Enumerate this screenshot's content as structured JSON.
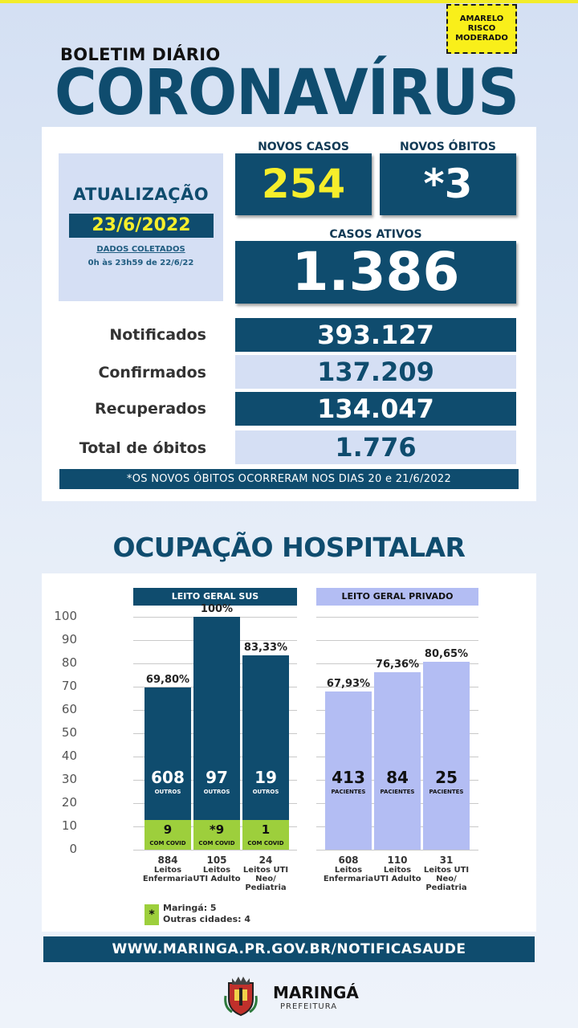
{
  "risk": {
    "line1": "AMARELO",
    "line2": "RISCO",
    "line3": "MODERADO",
    "color": "#f9ef1a"
  },
  "header": {
    "kicker": "BOLETIM DIÁRIO",
    "title": "CORONAVÍRUS"
  },
  "update": {
    "title": "ATUALIZAÇÃO",
    "date": "23/6/2022",
    "sub1": "DADOS COLETADOS",
    "sub2": "0h às 23h59 de 22/6/22"
  },
  "new_cases": {
    "label": "NOVOS CASOS",
    "value": "254"
  },
  "new_deaths": {
    "label": "NOVOS ÓBITOS",
    "value": "*3"
  },
  "active": {
    "label": "CASOS ATIVOS",
    "value": "1.386"
  },
  "rows": [
    {
      "label": "Notificados",
      "value": "393.127"
    },
    {
      "label": "Confirmados",
      "value": "137.209"
    },
    {
      "label": "Recuperados",
      "value": "134.047"
    },
    {
      "label": "Total de óbitos",
      "value": "1.776"
    }
  ],
  "note": "*OS NOVOS  ÓBITOS OCORRERAM NOS DIAS 20 e 21/6/2022",
  "hospital": {
    "title": "OCUPAÇÃO HOSPITALAR",
    "yticks": [
      "100",
      "90",
      "80",
      "70",
      "60",
      "50",
      "40",
      "30",
      "20",
      "10",
      "0"
    ],
    "sus_header": "LEITO GERAL SUS",
    "priv_header": "LEITO GERAL PRIVADO"
  },
  "chart_data": {
    "type": "bar",
    "ylim": [
      0,
      100
    ],
    "groups": [
      {
        "name": "LEITO GERAL SUS",
        "bars": [
          {
            "pct_label": "69,80%",
            "value": 69.8,
            "others": "608",
            "others_label": "OUTROS",
            "covid": "9",
            "covid_label": "COM COVID",
            "covid_value": 1.0,
            "beds": "884",
            "cap1": "Leitos",
            "cap2": "Enfermaria",
            "cap3": ""
          },
          {
            "pct_label": "100%",
            "value": 100,
            "others": "97",
            "others_label": "OUTROS",
            "covid": "*9",
            "covid_label": "COM COVID",
            "covid_value": 8.6,
            "beds": "105",
            "cap1": "Leitos",
            "cap2": "UTI Adulto",
            "cap3": ""
          },
          {
            "pct_label": "83,33%",
            "value": 83.33,
            "others": "19",
            "others_label": "OUTROS",
            "covid": "1",
            "covid_label": "COM COVID",
            "covid_value": 4.2,
            "beds": "24",
            "cap1": "Leitos UTI",
            "cap2": "Neo/",
            "cap3": "Pediatria"
          }
        ]
      },
      {
        "name": "LEITO GERAL PRIVADO",
        "bars": [
          {
            "pct_label": "67,93%",
            "value": 67.93,
            "patients": "413",
            "patients_label": "PACIENTES",
            "beds": "608",
            "cap1": "Leitos",
            "cap2": "Enfermaria",
            "cap3": ""
          },
          {
            "pct_label": "76,36%",
            "value": 76.36,
            "patients": "84",
            "patients_label": "PACIENTES",
            "beds": "110",
            "cap1": "Leitos",
            "cap2": "UTI Adulto",
            "cap3": ""
          },
          {
            "pct_label": "80,65%",
            "value": 80.65,
            "patients": "25",
            "patients_label": "PACIENTES",
            "beds": "31",
            "cap1": "Leitos UTI",
            "cap2": "Neo/",
            "cap3": "Pediatria"
          }
        ]
      }
    ],
    "colors": {
      "sus": "#0f4c6e",
      "covid": "#9dcf3c",
      "private": "#b3bdf3"
    }
  },
  "legend": {
    "symbol": "*",
    "line1": "Maringá: 5",
    "line2": "Outras cidades: 4"
  },
  "url": "WWW.MARINGA.PR.GOV.BR/NOTIFICASAUDE",
  "logo": {
    "name": "MARINGÁ",
    "sub": "PREFEITURA"
  }
}
